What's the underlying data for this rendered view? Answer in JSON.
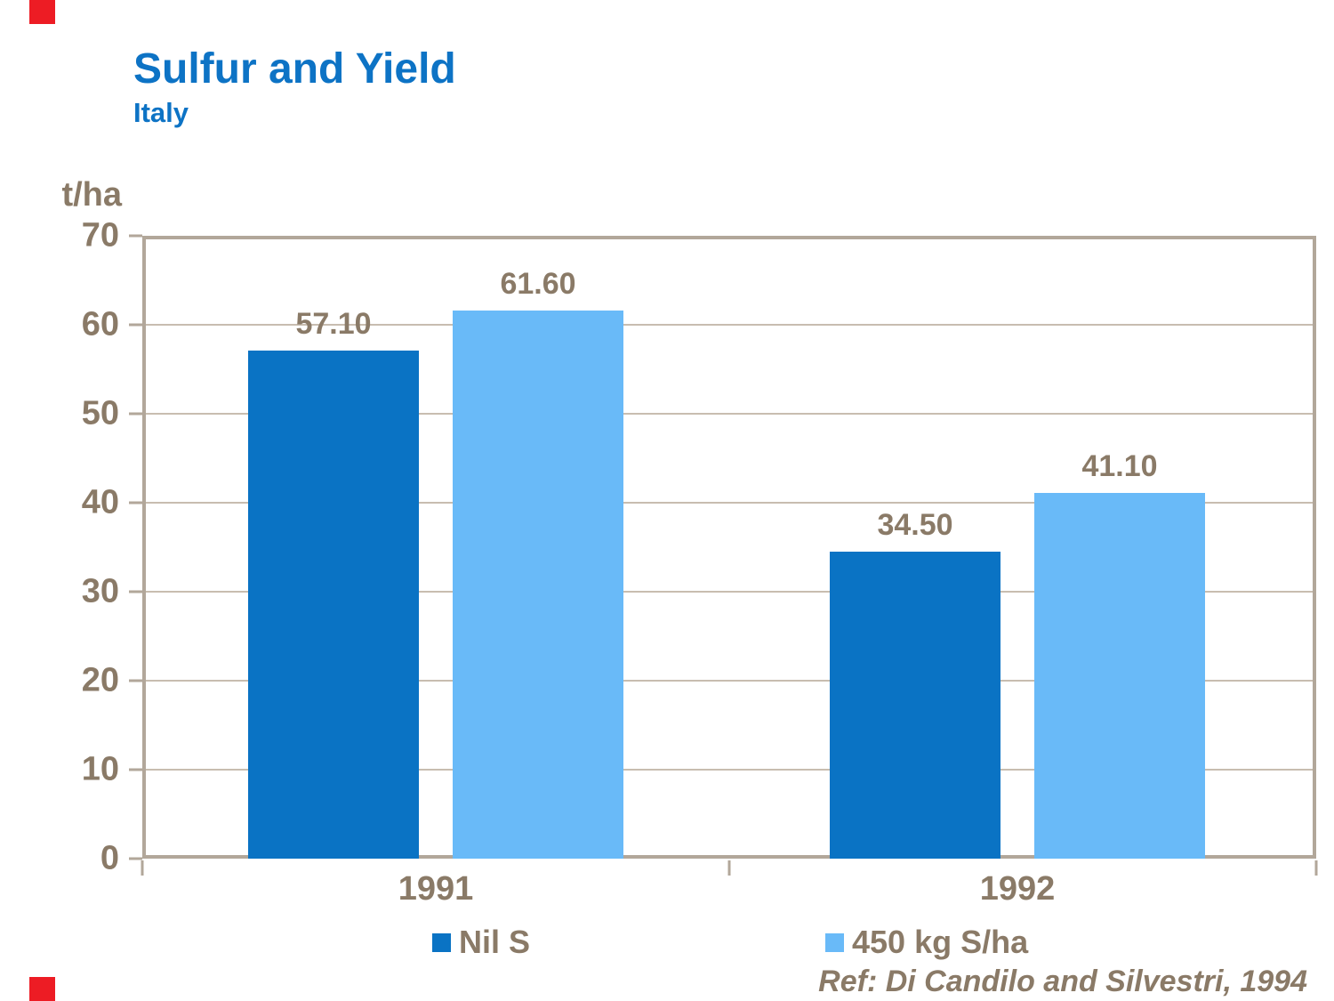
{
  "page": {
    "title": "Sulfur and Yield",
    "subtitle": "Italy",
    "reference": "Ref: Di Candilo and Silvestri, 1994"
  },
  "colors": {
    "title_blue": "#0d73c5",
    "text_tan": "#8a7a67",
    "frame_tan": "#b2a79a",
    "grid_tan": "#c8bdb0",
    "series1_dark_blue": "#0a73c4",
    "series2_light_blue": "#69baf8",
    "corner_red": "#ed1c24",
    "background": "#ffffff"
  },
  "chart_data": {
    "type": "bar",
    "title": "Sulfur and Yield",
    "subtitle": "Italy",
    "ylabel": "t/ha",
    "xlabel": "",
    "categories": [
      "1991",
      "1992"
    ],
    "series": [
      {
        "name": "Nil S",
        "color": "#0a73c4",
        "values": [
          57.1,
          34.5
        ],
        "value_labels": [
          "57.10",
          "34.50"
        ]
      },
      {
        "name": "450 kg S/ha",
        "color": "#69baf8",
        "values": [
          61.6,
          41.1
        ],
        "value_labels": [
          "61.60",
          "41.10"
        ]
      }
    ],
    "ylim": [
      0,
      70
    ],
    "yticks": [
      0,
      10,
      20,
      30,
      40,
      50,
      60,
      70
    ],
    "grid": true,
    "legend_position": "bottom",
    "annotation": "Ref: Di Candilo and Silvestri, 1994"
  }
}
